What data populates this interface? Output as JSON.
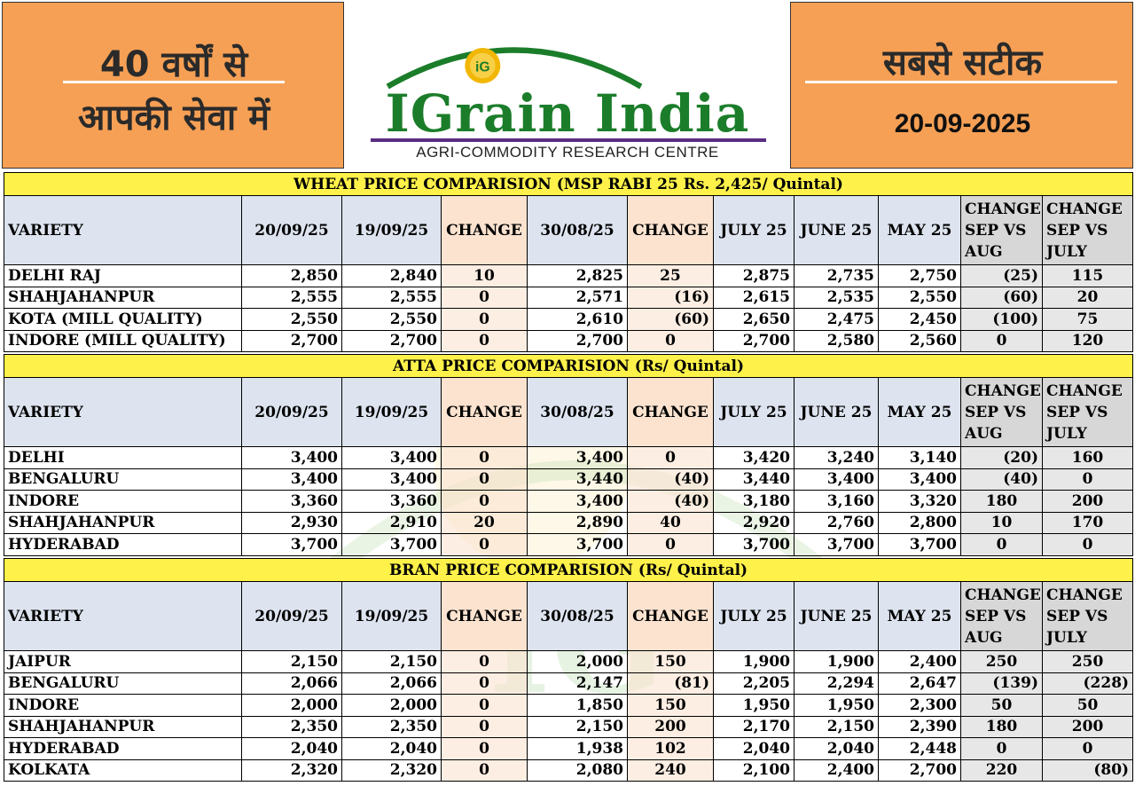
{
  "header": {
    "left_line1": "40 वर्षों से",
    "left_line2": "आपकी सेवा में",
    "logo_name": "IGrain India",
    "logo_sub": "AGRI-COMMODITY RESEARCH CENTRE",
    "right_line": "सबसे सटीक",
    "date": "20-09-2025"
  },
  "colors": {
    "orange": "#f6a055",
    "yellow": "#fdf14a",
    "green": "#3a9e3a",
    "red": "#d32222",
    "logo_green": "#1b7d2a"
  },
  "columns": [
    "VARIETY",
    "20/09/25",
    "19/09/25",
    "CHANGE",
    "30/08/25",
    "CHANGE",
    "JULY 25",
    "JUNE 25",
    "MAY 25",
    "CHANGE SEP VS AUG",
    "CHANGE SEP VS JULY"
  ],
  "sections": [
    {
      "title": "WHEAT PRICE COMPARISION (MSP RABI 25 Rs. 2,425/ Quintal)",
      "rows": [
        [
          "DELHI RAJ",
          "2,850",
          "2,840",
          "10",
          "2,825",
          "25",
          "2,875",
          "2,735",
          "2,750",
          "(25)",
          "115"
        ],
        [
          "SHAHJAHANPUR",
          "2,555",
          "2,555",
          "0",
          "2,571",
          "(16)",
          "2,615",
          "2,535",
          "2,550",
          "(60)",
          "20"
        ],
        [
          "KOTA (MILL QUALITY)",
          "2,550",
          "2,550",
          "0",
          "2,610",
          "(60)",
          "2,650",
          "2,475",
          "2,450",
          "(100)",
          "75"
        ],
        [
          "INDORE (MILL QUALITY)",
          "2,700",
          "2,700",
          "0",
          "2,700",
          "0",
          "2,700",
          "2,580",
          "2,560",
          "0",
          "120"
        ]
      ]
    },
    {
      "title": "ATTA PRICE COMPARISION (Rs/ Quintal)",
      "rows": [
        [
          "DELHI",
          "3,400",
          "3,400",
          "0",
          "3,400",
          "0",
          "3,420",
          "3,240",
          "3,140",
          "(20)",
          "160"
        ],
        [
          "BENGALURU",
          "3,400",
          "3,400",
          "0",
          "3,440",
          "(40)",
          "3,440",
          "3,400",
          "3,400",
          "(40)",
          "0"
        ],
        [
          "INDORE",
          "3,360",
          "3,360",
          "0",
          "3,400",
          "(40)",
          "3,180",
          "3,160",
          "3,320",
          "180",
          "200"
        ],
        [
          "SHAHJAHANPUR",
          "2,930",
          "2,910",
          "20",
          "2,890",
          "40",
          "2,920",
          "2,760",
          "2,800",
          "10",
          "170"
        ],
        [
          "HYDERABAD",
          "3,700",
          "3,700",
          "0",
          "3,700",
          "0",
          "3,700",
          "3,700",
          "3,700",
          "0",
          "0"
        ]
      ]
    },
    {
      "title": "BRAN PRICE COMPARISION (Rs/ Quintal)",
      "rows": [
        [
          "JAIPUR",
          "2,150",
          "2,150",
          "0",
          "2,000",
          "150",
          "1,900",
          "1,900",
          "2,400",
          "250",
          "250"
        ],
        [
          "BENGALURU",
          "2,066",
          "2,066",
          "0",
          "2,147",
          "(81)",
          "2,205",
          "2,294",
          "2,647",
          "(139)",
          "(228)"
        ],
        [
          "INDORE",
          "2,000",
          "2,000",
          "0",
          "1,850",
          "150",
          "1,950",
          "1,950",
          "2,300",
          "50",
          "50"
        ],
        [
          "SHAHJAHANPUR",
          "2,350",
          "2,350",
          "0",
          "2,150",
          "200",
          "2,170",
          "2,150",
          "2,390",
          "180",
          "200"
        ],
        [
          "HYDERABAD",
          "2,040",
          "2,040",
          "0",
          "1,938",
          "102",
          "2,040",
          "2,040",
          "2,448",
          "0",
          "0"
        ],
        [
          "KOLKATA",
          "2,320",
          "2,320",
          "0",
          "2,080",
          "240",
          "2,100",
          "2,400",
          "2,700",
          "220",
          "(80)"
        ]
      ]
    }
  ]
}
